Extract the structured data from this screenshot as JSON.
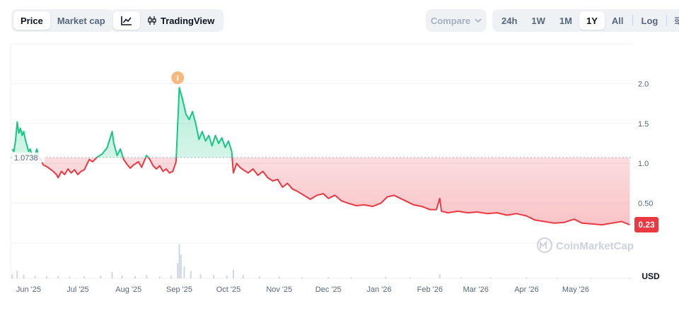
{
  "toolbar": {
    "view_tabs": [
      {
        "label": "Price",
        "active": true
      },
      {
        "label": "Market cap",
        "active": false
      }
    ],
    "chart_tools": {
      "line_icon": "line-chart-icon",
      "tv_icon": "candlestick-icon",
      "tv_label": "TradingView"
    },
    "compare": {
      "label": "Compare",
      "icon": "chevron-down-icon"
    },
    "ranges": [
      {
        "label": "24h",
        "active": false
      },
      {
        "label": "1W",
        "active": false
      },
      {
        "label": "1M",
        "active": false
      },
      {
        "label": "1Y",
        "active": true
      },
      {
        "label": "All",
        "active": false
      }
    ],
    "log_label": "Log",
    "settings_icon": "sliders-icon"
  },
  "watermark": {
    "label": "CoinMarketCap",
    "icon": "coinmarketcap-logo-icon"
  },
  "colors": {
    "up": "#16c784",
    "down": "#ea3943",
    "grid": "#eff2f5",
    "axis_text": "#58667e",
    "marker": "#f6b87e"
  },
  "chart_data": {
    "type": "area",
    "x_labels": [
      "Jun '25",
      "Jul '25",
      "Aug '25",
      "Sep '25",
      "Oct '25",
      "Nov '25",
      "Dec '25",
      "Jan '26",
      "Feb '26",
      "Mar '26",
      "Apr '26",
      "May '26"
    ],
    "y_ticks": [
      {
        "value": 0.5,
        "label": "0.50"
      },
      {
        "value": 1.0,
        "label": "1.0"
      },
      {
        "value": 1.5,
        "label": "1.5"
      },
      {
        "value": 2.0,
        "label": "2.0"
      }
    ],
    "ylim": [
      0,
      2.5
    ],
    "unit": "USD",
    "baseline": {
      "value": 1.0738,
      "label": "1.0738"
    },
    "current": {
      "value": 0.23,
      "label": "0.23"
    },
    "event_marker": {
      "date": "2025-08-31",
      "label": "i"
    },
    "price_series": [
      [
        "2025-05-22",
        1.18
      ],
      [
        "2025-05-23",
        1.15
      ],
      [
        "2025-05-24",
        1.28
      ],
      [
        "2025-05-25",
        1.52
      ],
      [
        "2025-05-26",
        1.38
      ],
      [
        "2025-05-27",
        1.44
      ],
      [
        "2025-05-28",
        1.35
      ],
      [
        "2025-05-29",
        1.4
      ],
      [
        "2025-05-30",
        1.3
      ],
      [
        "2025-05-31",
        1.22
      ],
      [
        "2025-06-01",
        1.15
      ],
      [
        "2025-06-02",
        1.18
      ],
      [
        "2025-06-03",
        1.1
      ],
      [
        "2025-06-04",
        1.06
      ],
      [
        "2025-06-05",
        1.12
      ],
      [
        "2025-06-06",
        1.18
      ],
      [
        "2025-06-07",
        1.1
      ],
      [
        "2025-06-08",
        1.05
      ],
      [
        "2025-06-09",
        1.02
      ],
      [
        "2025-06-10",
        0.98
      ],
      [
        "2025-06-12",
        0.96
      ],
      [
        "2025-06-14",
        0.93
      ],
      [
        "2025-06-16",
        0.9
      ],
      [
        "2025-06-18",
        0.86
      ],
      [
        "2025-06-19",
        0.82
      ],
      [
        "2025-06-21",
        0.9
      ],
      [
        "2025-06-23",
        0.86
      ],
      [
        "2025-06-25",
        0.93
      ],
      [
        "2025-06-27",
        0.88
      ],
      [
        "2025-06-29",
        0.92
      ],
      [
        "2025-07-01",
        0.86
      ],
      [
        "2025-07-03",
        0.9
      ],
      [
        "2025-07-05",
        0.92
      ],
      [
        "2025-07-08",
        1.05
      ],
      [
        "2025-07-10",
        1.02
      ],
      [
        "2025-07-13",
        1.08
      ],
      [
        "2025-07-16",
        1.12
      ],
      [
        "2025-07-19",
        1.2
      ],
      [
        "2025-07-22",
        1.4
      ],
      [
        "2025-07-23",
        1.25
      ],
      [
        "2025-07-25",
        1.1
      ],
      [
        "2025-07-27",
        1.18
      ],
      [
        "2025-07-29",
        1.05
      ],
      [
        "2025-07-31",
        0.99
      ],
      [
        "2025-08-02",
        0.94
      ],
      [
        "2025-08-04",
        0.98
      ],
      [
        "2025-08-07",
        1.02
      ],
      [
        "2025-08-09",
        0.95
      ],
      [
        "2025-08-12",
        1.1
      ],
      [
        "2025-08-14",
        1.05
      ],
      [
        "2025-08-16",
        0.97
      ],
      [
        "2025-08-18",
        0.93
      ],
      [
        "2025-08-20",
        0.97
      ],
      [
        "2025-08-22",
        0.9
      ],
      [
        "2025-08-24",
        0.93
      ],
      [
        "2025-08-26",
        0.88
      ],
      [
        "2025-08-28",
        0.9
      ],
      [
        "2025-08-30",
        1.02
      ],
      [
        "2025-09-01",
        1.95
      ],
      [
        "2025-09-03",
        1.8
      ],
      [
        "2025-09-05",
        1.62
      ],
      [
        "2025-09-07",
        1.55
      ],
      [
        "2025-09-09",
        1.65
      ],
      [
        "2025-09-11",
        1.5
      ],
      [
        "2025-09-13",
        1.3
      ],
      [
        "2025-09-15",
        1.4
      ],
      [
        "2025-09-17",
        1.28
      ],
      [
        "2025-09-19",
        1.35
      ],
      [
        "2025-09-21",
        1.22
      ],
      [
        "2025-09-23",
        1.35
      ],
      [
        "2025-09-25",
        1.25
      ],
      [
        "2025-09-27",
        1.32
      ],
      [
        "2025-09-29",
        1.2
      ],
      [
        "2025-10-01",
        1.28
      ],
      [
        "2025-10-03",
        1.15
      ],
      [
        "2025-10-04",
        0.88
      ],
      [
        "2025-10-06",
        1.0
      ],
      [
        "2025-10-08",
        0.95
      ],
      [
        "2025-10-10",
        0.92
      ],
      [
        "2025-10-13",
        0.88
      ],
      [
        "2025-10-16",
        0.93
      ],
      [
        "2025-10-19",
        0.85
      ],
      [
        "2025-10-22",
        0.9
      ],
      [
        "2025-10-25",
        0.82
      ],
      [
        "2025-10-28",
        0.78
      ],
      [
        "2025-10-31",
        0.8
      ],
      [
        "2025-11-03",
        0.7
      ],
      [
        "2025-11-06",
        0.75
      ],
      [
        "2025-11-09",
        0.68
      ],
      [
        "2025-11-12",
        0.65
      ],
      [
        "2025-11-16",
        0.6
      ],
      [
        "2025-11-20",
        0.55
      ],
      [
        "2025-11-24",
        0.6
      ],
      [
        "2025-11-28",
        0.62
      ],
      [
        "2025-12-01",
        0.56
      ],
      [
        "2025-12-05",
        0.6
      ],
      [
        "2025-12-09",
        0.53
      ],
      [
        "2025-12-13",
        0.5
      ],
      [
        "2025-12-18",
        0.47
      ],
      [
        "2025-12-23",
        0.48
      ],
      [
        "2025-12-28",
        0.46
      ],
      [
        "2026-01-02",
        0.5
      ],
      [
        "2026-01-06",
        0.58
      ],
      [
        "2026-01-10",
        0.6
      ],
      [
        "2026-01-14",
        0.56
      ],
      [
        "2026-01-18",
        0.52
      ],
      [
        "2026-01-22",
        0.48
      ],
      [
        "2026-01-27",
        0.46
      ],
      [
        "2026-02-01",
        0.42
      ],
      [
        "2026-02-05",
        0.42
      ],
      [
        "2026-02-07",
        0.56
      ],
      [
        "2026-02-08",
        0.4
      ],
      [
        "2026-02-12",
        0.38
      ],
      [
        "2026-02-18",
        0.4
      ],
      [
        "2026-02-24",
        0.38
      ],
      [
        "2026-03-02",
        0.39
      ],
      [
        "2026-03-08",
        0.37
      ],
      [
        "2026-03-14",
        0.38
      ],
      [
        "2026-03-20",
        0.35
      ],
      [
        "2026-03-26",
        0.37
      ],
      [
        "2026-04-01",
        0.34
      ],
      [
        "2026-04-06",
        0.29
      ],
      [
        "2026-04-12",
        0.27
      ],
      [
        "2026-04-18",
        0.25
      ],
      [
        "2026-04-24",
        0.26
      ],
      [
        "2026-04-30",
        0.3
      ],
      [
        "2026-05-05",
        0.25
      ],
      [
        "2026-05-11",
        0.24
      ],
      [
        "2026-05-17",
        0.23
      ],
      [
        "2026-05-23",
        0.25
      ],
      [
        "2026-05-29",
        0.27
      ],
      [
        "2026-06-03",
        0.23
      ]
    ],
    "volume_series": [
      [
        "2025-05-22",
        0.12
      ],
      [
        "2025-05-25",
        0.22
      ],
      [
        "2025-05-29",
        0.1
      ],
      [
        "2025-06-05",
        0.08
      ],
      [
        "2025-06-12",
        0.06
      ],
      [
        "2025-06-19",
        0.07
      ],
      [
        "2025-06-26",
        0.05
      ],
      [
        "2025-07-05",
        0.06
      ],
      [
        "2025-07-15",
        0.08
      ],
      [
        "2025-07-22",
        0.2
      ],
      [
        "2025-07-28",
        0.09
      ],
      [
        "2025-08-05",
        0.07
      ],
      [
        "2025-08-12",
        0.1
      ],
      [
        "2025-08-20",
        0.06
      ],
      [
        "2025-08-27",
        0.08
      ],
      [
        "2025-08-31",
        0.45
      ],
      [
        "2025-09-01",
        1.0
      ],
      [
        "2025-09-02",
        0.7
      ],
      [
        "2025-09-04",
        0.35
      ],
      [
        "2025-09-08",
        0.22
      ],
      [
        "2025-09-14",
        0.12
      ],
      [
        "2025-09-22",
        0.1
      ],
      [
        "2025-09-30",
        0.08
      ],
      [
        "2025-10-04",
        0.25
      ],
      [
        "2025-10-10",
        0.1
      ],
      [
        "2025-10-20",
        0.06
      ],
      [
        "2025-11-01",
        0.05
      ],
      [
        "2025-11-15",
        0.04
      ],
      [
        "2025-12-01",
        0.04
      ],
      [
        "2025-12-15",
        0.03
      ],
      [
        "2026-01-05",
        0.05
      ],
      [
        "2026-01-20",
        0.03
      ],
      [
        "2026-02-07",
        0.12
      ],
      [
        "2026-02-20",
        0.03
      ],
      [
        "2026-03-10",
        0.03
      ],
      [
        "2026-04-01",
        0.03
      ],
      [
        "2026-04-20",
        0.02
      ],
      [
        "2026-05-10",
        0.02
      ],
      [
        "2026-06-03",
        0.02
      ]
    ]
  }
}
